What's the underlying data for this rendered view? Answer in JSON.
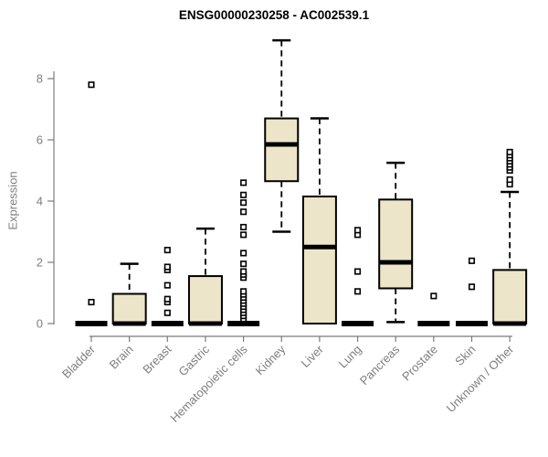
{
  "title": "ENSG00000230258 - AC002539.1",
  "ylabel": "Expression",
  "colors": {
    "box_fill": "#ece5c9",
    "box_stroke": "#000000",
    "axis": "#7b7b7b",
    "tick_label": "#7e7e7e",
    "title": "#000000",
    "outlier_fill": "#ffffff"
  },
  "chart_data": {
    "type": "boxplot",
    "title": "ENSG00000230258 - AC002539.1",
    "ylabel": "Expression",
    "xlabel": "",
    "ylim": [
      0,
      9.5
    ],
    "yticks": [
      0,
      2,
      4,
      6,
      8
    ],
    "grid": false,
    "legend": "none",
    "categories": [
      "Bladder",
      "Brain",
      "Breast",
      "Gastric",
      "Hematopoietic cells",
      "Kidney",
      "Liver",
      "Lung",
      "Pancreas",
      "Prostate",
      "Skin",
      "Unknown / Other"
    ],
    "series": [
      {
        "name": "Bladder",
        "min": 0,
        "q1": 0,
        "median": 0,
        "q3": 0,
        "max": 0,
        "outliers": [
          0.7,
          7.8
        ]
      },
      {
        "name": "Brain",
        "min": 0,
        "q1": 0,
        "median": 0,
        "q3": 0.97,
        "max": 1.95,
        "outliers": []
      },
      {
        "name": "Breast",
        "min": 0,
        "q1": 0,
        "median": 0,
        "q3": 0,
        "max": 0,
        "outliers": [
          0.35,
          0.7,
          0.8,
          1.25,
          1.75,
          1.85,
          2.4
        ]
      },
      {
        "name": "Gastric",
        "min": 0,
        "q1": 0,
        "median": 0,
        "q3": 1.55,
        "max": 3.1,
        "outliers": []
      },
      {
        "name": "Hematopoietic cells",
        "min": 0,
        "q1": 0,
        "median": 0,
        "q3": 0,
        "max": 0,
        "outliers": [
          0.15,
          0.25,
          0.35,
          0.45,
          0.55,
          0.65,
          0.75,
          0.85,
          0.95,
          1.05,
          1.5,
          1.6,
          1.7,
          1.95,
          2.3,
          2.9,
          3.15,
          3.65,
          3.95,
          4.2,
          4.6
        ]
      },
      {
        "name": "Kidney",
        "min": 3.0,
        "q1": 4.65,
        "median": 5.85,
        "q3": 6.7,
        "max": 9.25,
        "outliers": []
      },
      {
        "name": "Liver",
        "min": 0,
        "q1": 0,
        "median": 2.5,
        "q3": 4.15,
        "max": 6.7,
        "outliers": []
      },
      {
        "name": "Lung",
        "min": 0,
        "q1": 0,
        "median": 0,
        "q3": 0,
        "max": 0,
        "outliers": [
          1.05,
          1.7,
          2.9,
          3.05
        ]
      },
      {
        "name": "Pancreas",
        "min": 0.05,
        "q1": 1.15,
        "median": 2.0,
        "q3": 4.05,
        "max": 5.25,
        "outliers": []
      },
      {
        "name": "Prostate",
        "min": 0,
        "q1": 0,
        "median": 0,
        "q3": 0,
        "max": 0,
        "outliers": [
          0.9
        ]
      },
      {
        "name": "Skin",
        "min": 0,
        "q1": 0,
        "median": 0,
        "q3": 0,
        "max": 0,
        "outliers": [
          1.2,
          2.05
        ]
      },
      {
        "name": "Unknown / Other",
        "min": 0,
        "q1": 0,
        "median": 0,
        "q3": 1.75,
        "max": 4.3,
        "outliers": [
          4.55,
          4.7,
          5.0,
          5.1,
          5.2,
          5.3,
          5.4,
          5.5,
          5.6
        ]
      }
    ]
  }
}
